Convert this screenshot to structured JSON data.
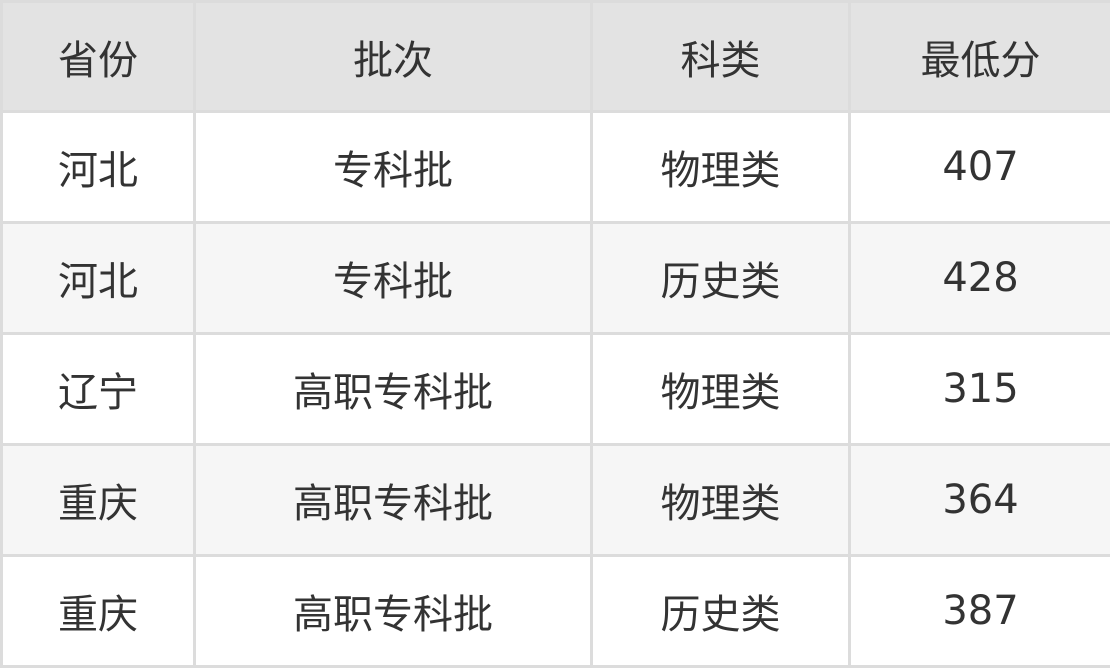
{
  "table": {
    "headers": [
      "省份",
      "批次",
      "科类",
      "最低分"
    ],
    "rows": [
      [
        "河北",
        "专科批",
        "物理类",
        "407"
      ],
      [
        "河北",
        "专科批",
        "历史类",
        "428"
      ],
      [
        "辽宁",
        "高职专科批",
        "物理类",
        "315"
      ],
      [
        "重庆",
        "高职专科批",
        "物理类",
        "364"
      ],
      [
        "重庆",
        "高职专科批",
        "历史类",
        "387"
      ]
    ]
  }
}
